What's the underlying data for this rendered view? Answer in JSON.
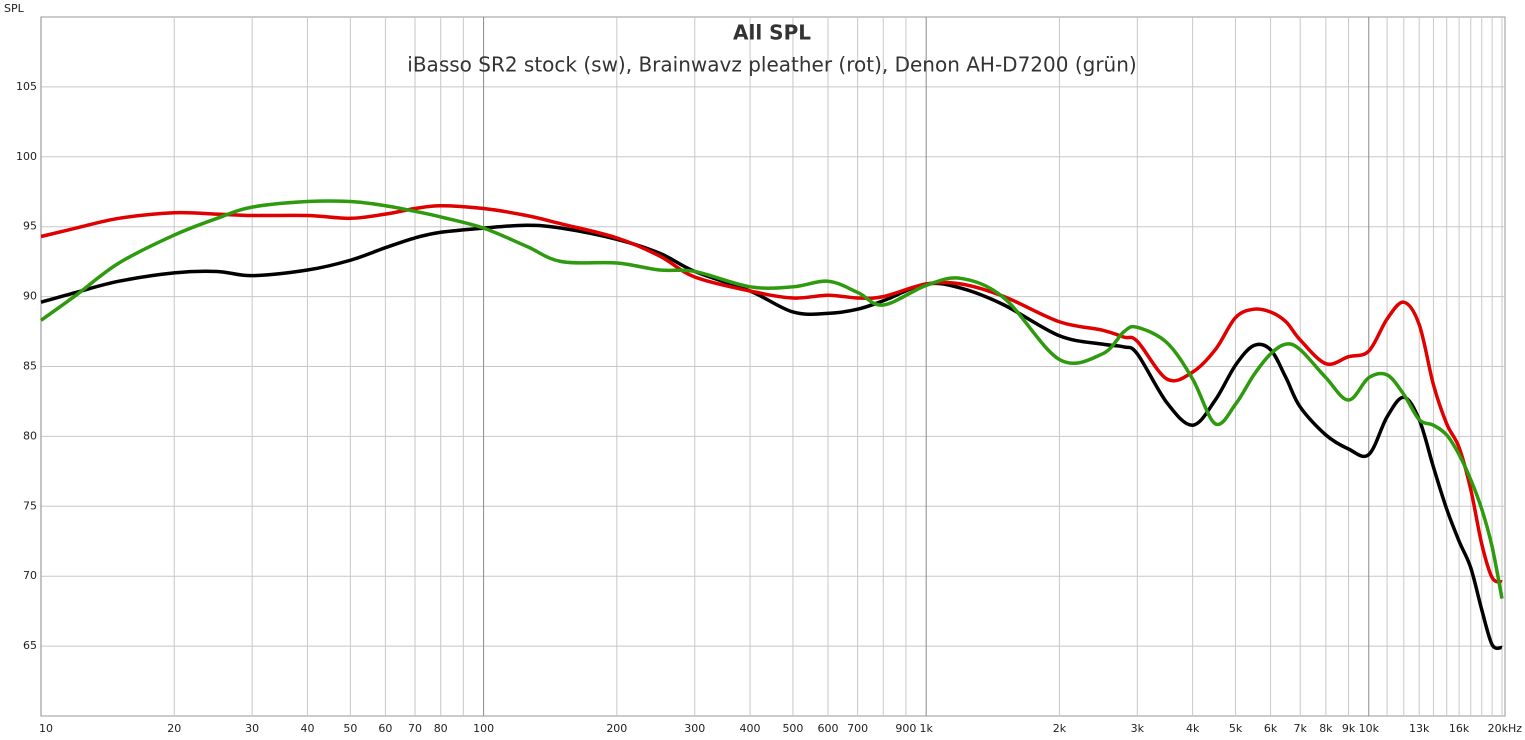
{
  "chart_data": {
    "type": "line",
    "title": "All SPL",
    "subtitle": "iBasso SR2 stock (sw), Brainwavz pleather (rot), Denon AH-D7200 (grün)",
    "y_label": "SPL",
    "x_scale": "log",
    "grid": true,
    "xlim": [
      10,
      20000
    ],
    "ylim": [
      60,
      110
    ],
    "yticks": [
      65,
      70,
      75,
      80,
      85,
      90,
      95,
      100,
      105
    ],
    "xticks": [
      10,
      20,
      30,
      40,
      50,
      60,
      70,
      80,
      100,
      200,
      300,
      400,
      500,
      600,
      700,
      900,
      {
        "value": 1000,
        "label": "1k"
      },
      {
        "value": 2000,
        "label": "2k"
      },
      {
        "value": 3000,
        "label": "3k"
      },
      {
        "value": 4000,
        "label": "4k"
      },
      {
        "value": 5000,
        "label": "5k"
      },
      {
        "value": 6000,
        "label": "6k"
      },
      {
        "value": 7000,
        "label": "7k"
      },
      {
        "value": 8000,
        "label": "8k"
      },
      {
        "value": 9000,
        "label": "9k"
      },
      {
        "value": 10000,
        "label": "10k"
      },
      {
        "value": 13000,
        "label": "13k",
        "color": "#aaaaaa"
      },
      {
        "value": 16000,
        "label": "16k",
        "color": "#aaaaaa"
      },
      {
        "value": 20000,
        "label": "20kHz"
      }
    ],
    "x_minor_grid": [
      90,
      800,
      11000,
      12000,
      14000,
      15000,
      17000,
      18000,
      19000
    ],
    "x": [
      10,
      12,
      15,
      20,
      25,
      30,
      40,
      50,
      60,
      70,
      80,
      100,
      125,
      150,
      200,
      250,
      300,
      400,
      500,
      600,
      700,
      800,
      1000,
      1200,
      1500,
      2000,
      2500,
      2800,
      3000,
      3500,
      4000,
      4500,
      5000,
      5500,
      6000,
      6500,
      7000,
      8000,
      9000,
      10000,
      11000,
      12000,
      13000,
      14000,
      15000,
      16000,
      17000,
      18000,
      19000,
      20000
    ],
    "series": [
      {
        "name": "iBasso SR2 stock (sw)",
        "color": "#000000",
        "values": [
          89.6,
          90.3,
          91.1,
          91.7,
          91.8,
          91.5,
          91.9,
          92.6,
          93.5,
          94.2,
          94.6,
          94.9,
          95.1,
          94.9,
          94.1,
          93.1,
          91.8,
          90.4,
          88.9,
          88.8,
          89.1,
          89.7,
          90.9,
          90.6,
          89.4,
          87.2,
          86.6,
          86.4,
          85.9,
          82.4,
          80.8,
          82.6,
          85.1,
          86.5,
          86.2,
          84.2,
          82.1,
          80.1,
          79.1,
          78.7,
          81.4,
          82.8,
          81.2,
          77.8,
          74.8,
          72.5,
          70.6,
          67.6,
          65.1,
          64.9
        ]
      },
      {
        "name": "Brainwavz pleather (rot)",
        "color": "#e00000",
        "values": [
          94.3,
          94.9,
          95.6,
          96.0,
          95.9,
          95.8,
          95.8,
          95.6,
          95.9,
          96.3,
          96.5,
          96.3,
          95.8,
          95.2,
          94.2,
          92.9,
          91.4,
          90.4,
          89.9,
          90.1,
          89.9,
          90.0,
          90.9,
          90.9,
          90.0,
          88.2,
          87.6,
          87.1,
          86.8,
          84.1,
          84.6,
          86.2,
          88.5,
          89.1,
          88.9,
          88.2,
          86.9,
          85.2,
          85.7,
          86.1,
          88.4,
          89.6,
          88.0,
          83.7,
          80.9,
          79.2,
          76.2,
          72.3,
          69.9,
          69.6
        ]
      },
      {
        "name": "Denon AH-D7200 (grün)",
        "color": "#2e9a0e",
        "values": [
          88.3,
          90.1,
          92.4,
          94.4,
          95.6,
          96.4,
          96.8,
          96.8,
          96.5,
          96.1,
          95.7,
          94.9,
          93.6,
          92.5,
          92.4,
          91.9,
          91.8,
          90.7,
          90.7,
          91.1,
          90.3,
          89.4,
          90.8,
          91.3,
          89.9,
          85.5,
          85.9,
          87.5,
          87.8,
          86.7,
          84.1,
          80.9,
          82.3,
          84.4,
          85.9,
          86.6,
          86.2,
          84.2,
          82.6,
          84.2,
          84.4,
          83.0,
          81.2,
          80.8,
          80.1,
          78.7,
          76.9,
          74.8,
          72.1,
          68.4
        ]
      }
    ]
  }
}
